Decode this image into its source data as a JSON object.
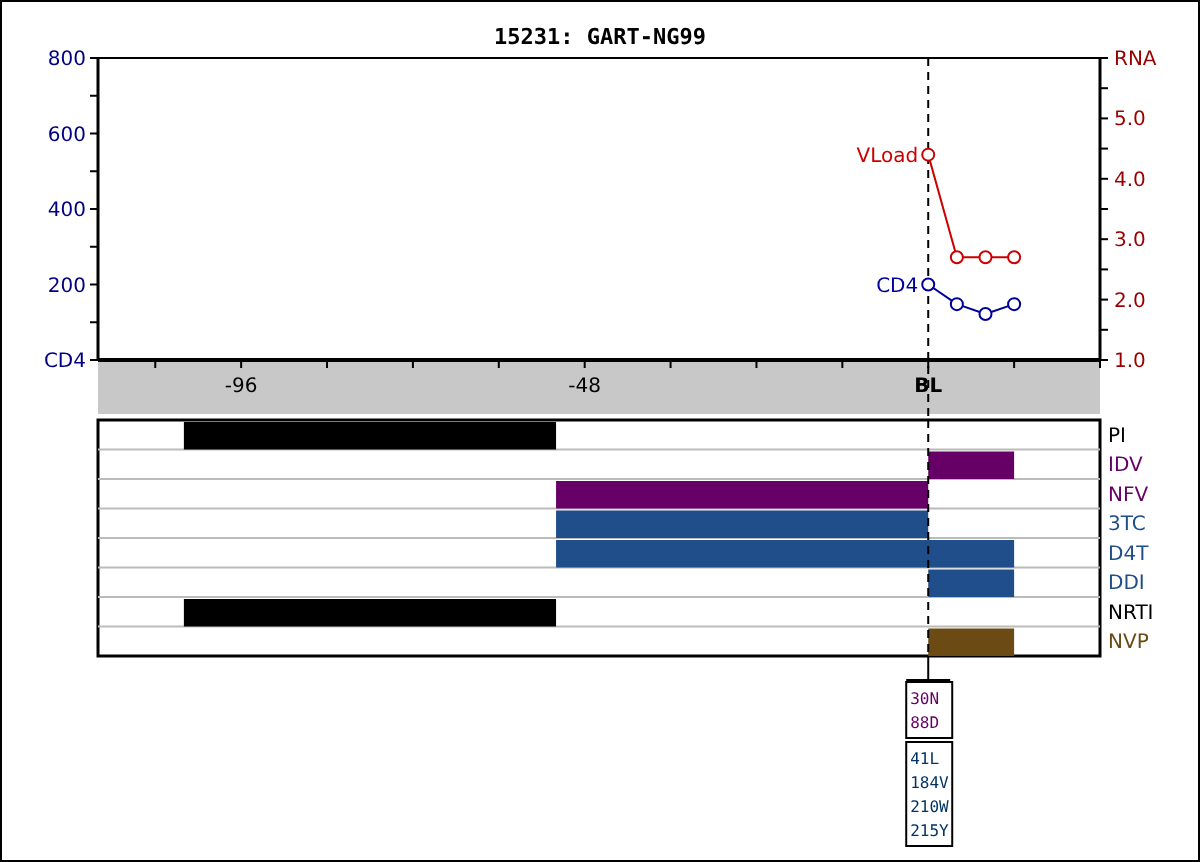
{
  "chart_data": [
    {
      "type": "line",
      "title": "15231: GART-NG99",
      "x": [
        0,
        4,
        8,
        12
      ],
      "xlim": [
        -116,
        24
      ],
      "xticks": [
        {
          "value": -108,
          "label": null
        },
        {
          "value": -96,
          "label": "-96"
        },
        {
          "value": -84,
          "label": null
        },
        {
          "value": -72,
          "label": null
        },
        {
          "value": -60,
          "label": null
        },
        {
          "value": -48,
          "label": "-48"
        },
        {
          "value": -36,
          "label": null
        },
        {
          "value": -24,
          "label": null
        },
        {
          "value": -12,
          "label": null
        },
        {
          "value": 0,
          "label": "BL"
        },
        {
          "value": 12,
          "label": null
        },
        {
          "value": 24,
          "label": null
        }
      ],
      "ylim": [
        0,
        800
      ],
      "yticks": [
        {
          "value": 0,
          "label": "CD4"
        },
        {
          "value": 100,
          "label": null
        },
        200,
        {
          "value": 300,
          "label": null
        },
        400,
        {
          "value": 500,
          "label": null
        },
        600,
        {
          "value": 700,
          "label": null
        },
        800
      ],
      "y2lim": [
        1,
        6
      ],
      "y2ticks": [
        {
          "value": 1,
          "label": "1.0"
        },
        {
          "value": 1.5,
          "label": null
        },
        {
          "value": 2,
          "label": "2.0"
        },
        {
          "value": 2.5,
          "label": null
        },
        {
          "value": 3,
          "label": "3.0"
        },
        {
          "value": 3.5,
          "label": null
        },
        {
          "value": 4,
          "label": "4.0"
        },
        {
          "value": 4.5,
          "label": null
        },
        {
          "value": 5,
          "label": "5.0"
        },
        {
          "value": 5.5,
          "label": null
        },
        {
          "value": 6,
          "label": "RNA"
        }
      ],
      "series": [
        {
          "name": "CD4",
          "color": "#000099",
          "values": [
            200,
            148,
            122,
            148
          ]
        },
        {
          "name": "VLoad",
          "color": "#cc0000",
          "values": [
            4.4,
            2.7,
            2.7,
            2.7
          ],
          "axis": "y2"
        }
      ],
      "marker": "circle",
      "ref_lines": [
        {
          "axis": "x",
          "value": 0,
          "line_style": "dashed",
          "color": "#000000"
        }
      ]
    },
    {
      "type": "bar",
      "orientation": "horizontal",
      "categories": [
        "PI",
        "IDV",
        "NFV",
        "3TC",
        "D4T",
        "DDI",
        "NRTI",
        "NVP"
      ],
      "base": [
        -104,
        0,
        -52,
        -52,
        -52,
        0,
        -104,
        0
      ],
      "values": [
        52,
        12,
        52,
        52,
        64,
        12,
        52,
        12
      ],
      "colors": [
        "#000000",
        "#660066",
        "#660066",
        "#1f4e8a",
        "#1f4e8a",
        "#1f4e8a",
        "#000000",
        "#6b4a14"
      ],
      "xlim": [
        -116,
        24
      ],
      "tick_labels": "y",
      "grid": "y",
      "ref_lines": [
        {
          "axis": "x",
          "value": 0,
          "line_style": "dashed",
          "color": "#000000"
        }
      ],
      "annotations": [
        "30N\n88D",
        "41L\n184V\n210W\n215Y"
      ]
    }
  ]
}
